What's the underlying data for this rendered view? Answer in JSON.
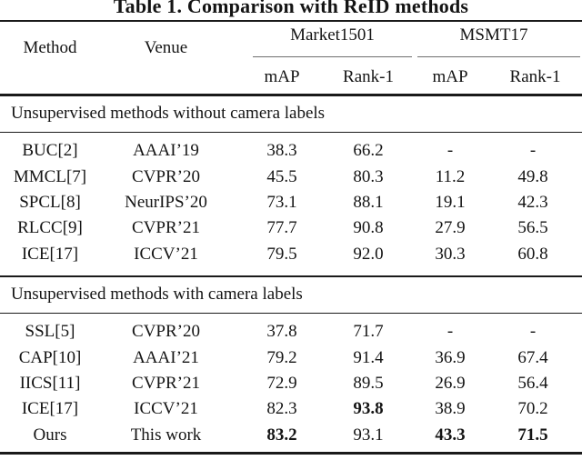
{
  "title": "Table 1. Comparison with ReID methods",
  "header": {
    "method": "Method",
    "venue": "Venue",
    "groups": [
      {
        "label": "Market1501"
      },
      {
        "label": "MSMT17"
      }
    ],
    "subcolumns": [
      "mAP",
      "Rank-1",
      "mAP",
      "Rank-1"
    ]
  },
  "sections": [
    {
      "header": "Unsupervised methods without camera labels",
      "rows": [
        {
          "method": "BUC[2]",
          "venue": "AAAI’19",
          "values": [
            "38.3",
            "66.2",
            "-",
            "-"
          ],
          "bold": [
            false,
            false,
            false,
            false
          ]
        },
        {
          "method": "MMCL[7]",
          "venue": "CVPR’20",
          "values": [
            "45.5",
            "80.3",
            "11.2",
            "49.8"
          ],
          "bold": [
            false,
            false,
            false,
            false
          ]
        },
        {
          "method": "SPCL[8]",
          "venue": "NeurIPS’20",
          "values": [
            "73.1",
            "88.1",
            "19.1",
            "42.3"
          ],
          "bold": [
            false,
            false,
            false,
            false
          ]
        },
        {
          "method": "RLCC[9]",
          "venue": "CVPR’21",
          "values": [
            "77.7",
            "90.8",
            "27.9",
            "56.5"
          ],
          "bold": [
            false,
            false,
            false,
            false
          ]
        },
        {
          "method": "ICE[17]",
          "venue": "ICCV’21",
          "values": [
            "79.5",
            "92.0",
            "30.3",
            "60.8"
          ],
          "bold": [
            false,
            false,
            false,
            false
          ]
        }
      ]
    },
    {
      "header": "Unsupervised methods with camera labels",
      "rows": [
        {
          "method": "SSL[5]",
          "venue": "CVPR’20",
          "values": [
            "37.8",
            "71.7",
            "-",
            "-"
          ],
          "bold": [
            false,
            false,
            false,
            false
          ]
        },
        {
          "method": "CAP[10]",
          "venue": "AAAI’21",
          "values": [
            "79.2",
            "91.4",
            "36.9",
            "67.4"
          ],
          "bold": [
            false,
            false,
            false,
            false
          ]
        },
        {
          "method": "IICS[11]",
          "venue": "CVPR’21",
          "values": [
            "72.9",
            "89.5",
            "26.9",
            "56.4"
          ],
          "bold": [
            false,
            false,
            false,
            false
          ]
        },
        {
          "method": "ICE[17]",
          "venue": "ICCV’21",
          "values": [
            "82.3",
            "93.8",
            "38.9",
            "70.2"
          ],
          "bold": [
            false,
            true,
            false,
            false
          ]
        },
        {
          "method": "Ours",
          "venue": "This work",
          "values": [
            "83.2",
            "93.1",
            "43.3",
            "71.5"
          ],
          "bold": [
            true,
            false,
            true,
            true
          ]
        }
      ]
    }
  ],
  "colors": {
    "background": "#ffffff",
    "text": "#141414",
    "heavy_rule": "#1a1a1a",
    "cmidrule": "#6e6e6e"
  }
}
